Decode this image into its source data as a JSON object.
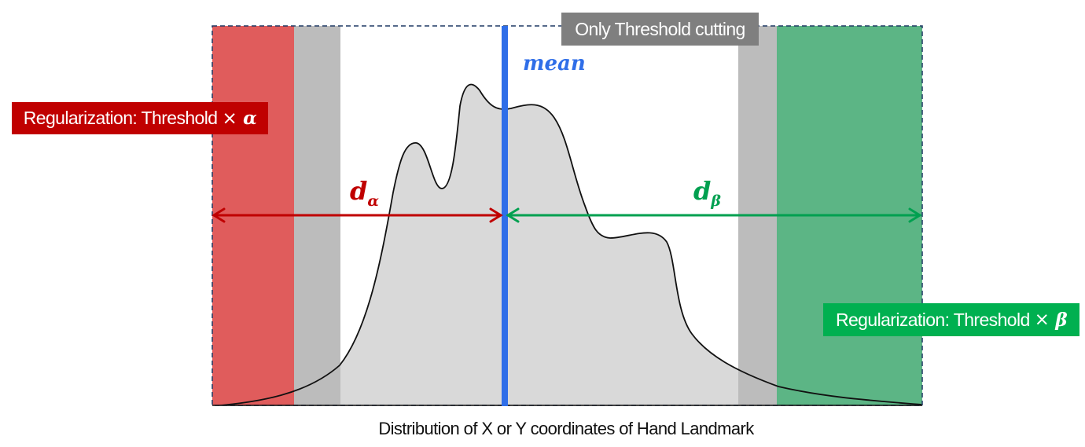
{
  "labels": {
    "top_tag": "Only Threshold cutting",
    "left_tag_text": "Regularization: Threshold",
    "left_tag_times": "×",
    "left_tag_symbol": "α",
    "right_tag_text": "Regularization: Threshold",
    "right_tag_times": "×",
    "right_tag_symbol": "β",
    "mean": "mean",
    "d_alpha_base": "d",
    "d_alpha_sub": "α",
    "d_beta_base": "d",
    "d_beta_sub": "β",
    "caption": "Distribution of X or Y coordinates of Hand Landmark"
  },
  "colors": {
    "red_region": "#e05c5c",
    "red_tag": "#c00000",
    "red_arrow": "#c00000",
    "green_region": "#5cb585",
    "green_tag": "#00b050",
    "green_arrow": "#00a050",
    "gray_band": "#bcbcbc",
    "distribution_fill": "#d9d9d9",
    "mean_line": "#2f6ee8",
    "top_tag": "#7f7f7f"
  }
}
